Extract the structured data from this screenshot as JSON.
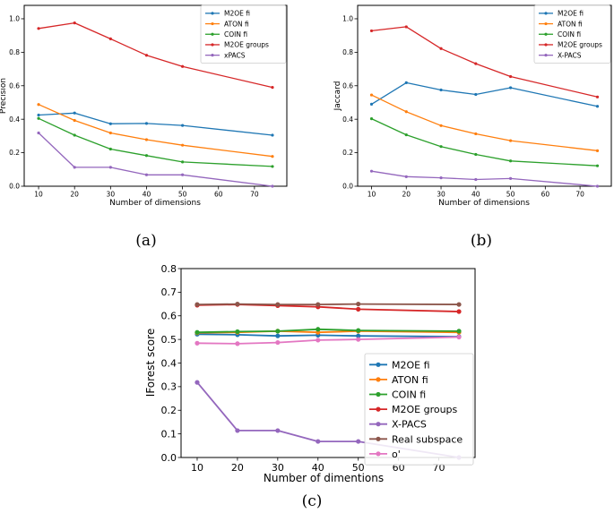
{
  "chart_data": [
    {
      "type": "line",
      "caption": "(a)",
      "title": "",
      "xlabel": "Number of dimensions",
      "ylabel": "Precision",
      "xlim": [
        6,
        79
      ],
      "ylim": [
        0,
        1.08
      ],
      "xticks": [
        10,
        20,
        30,
        40,
        50,
        60,
        70
      ],
      "xtick_labels": [
        "10",
        "20",
        "30",
        "40",
        "50",
        "60",
        "70"
      ],
      "yticks": [
        0,
        0.2,
        0.4,
        0.6,
        0.8,
        1.0
      ],
      "ytick_labels": [
        "0.0",
        "0.2",
        "0.4",
        "0.6",
        "0.8",
        "1.0"
      ],
      "legend_loc": "top-right",
      "x": [
        10,
        20,
        30,
        40,
        50,
        75
      ],
      "series": [
        {
          "name": "M2OE fi",
          "color": "#1f77b4",
          "values": [
            0.425,
            0.437,
            0.373,
            0.375,
            0.363,
            0.305
          ]
        },
        {
          "name": "ATON fi",
          "color": "#ff7f0e",
          "values": [
            0.488,
            0.393,
            0.318,
            0.278,
            0.245,
            0.178
          ]
        },
        {
          "name": "COIN fi",
          "color": "#2ca02c",
          "values": [
            0.405,
            0.305,
            0.222,
            0.183,
            0.145,
            0.118
          ]
        },
        {
          "name": "M2OE groups",
          "color": "#d62728",
          "values": [
            0.942,
            0.975,
            0.88,
            0.782,
            0.715,
            0.59
          ]
        },
        {
          "name": "xPACS",
          "color": "#9467bd",
          "values": [
            0.318,
            0.113,
            0.113,
            0.068,
            0.068,
            0.0
          ]
        }
      ]
    },
    {
      "type": "line",
      "caption": "(b)",
      "title": "",
      "xlabel": "Number of dimensions",
      "ylabel": "Jaccard",
      "xlim": [
        6,
        79
      ],
      "ylim": [
        0,
        1.08
      ],
      "xticks": [
        10,
        20,
        30,
        40,
        50,
        60,
        70
      ],
      "xtick_labels": [
        "10",
        "20",
        "30",
        "40",
        "50",
        "60",
        "70"
      ],
      "yticks": [
        0,
        0.2,
        0.4,
        0.6,
        0.8,
        1.0
      ],
      "ytick_labels": [
        "0.0",
        "0.2",
        "0.4",
        "0.6",
        "0.8",
        "1.0"
      ],
      "legend_loc": "top-right",
      "x": [
        10,
        20,
        30,
        40,
        50,
        75
      ],
      "series": [
        {
          "name": "M2OE fi",
          "color": "#1f77b4",
          "values": [
            0.49,
            0.618,
            0.575,
            0.548,
            0.588,
            0.477
          ]
        },
        {
          "name": "ATON fi",
          "color": "#ff7f0e",
          "values": [
            0.545,
            0.445,
            0.362,
            0.313,
            0.272,
            0.212
          ]
        },
        {
          "name": "COIN fi",
          "color": "#2ca02c",
          "values": [
            0.403,
            0.307,
            0.237,
            0.19,
            0.151,
            0.122
          ]
        },
        {
          "name": "M2OE groups",
          "color": "#d62728",
          "values": [
            0.928,
            0.952,
            0.822,
            0.732,
            0.655,
            0.533
          ]
        },
        {
          "name": "X-PACS",
          "color": "#9467bd",
          "values": [
            0.09,
            0.057,
            0.05,
            0.04,
            0.046,
            0.0
          ]
        }
      ]
    },
    {
      "type": "line",
      "caption": "(c)",
      "title": "",
      "xlabel": "Number of dimentions",
      "ylabel": "IForest score",
      "xlim": [
        6,
        79
      ],
      "ylim": [
        0,
        0.8
      ],
      "xticks": [
        10,
        20,
        30,
        40,
        50,
        60,
        70
      ],
      "xtick_labels": [
        "10",
        "20",
        "30",
        "40",
        "50",
        "60",
        "70"
      ],
      "yticks": [
        0,
        0.1,
        0.2,
        0.3,
        0.4,
        0.5,
        0.6,
        0.7,
        0.8
      ],
      "ytick_labels": [
        "0.0",
        "0.1",
        "0.2",
        "0.3",
        "0.4",
        "0.5",
        "0.6",
        "0.7",
        "0.8"
      ],
      "legend_loc": "center-right",
      "x": [
        10,
        20,
        30,
        40,
        50,
        75
      ],
      "series": [
        {
          "name": "M2OE fi",
          "color": "#1f77b4",
          "values": [
            0.522,
            0.52,
            0.515,
            0.518,
            0.515,
            0.512
          ]
        },
        {
          "name": "ATON fi",
          "color": "#ff7f0e",
          "values": [
            0.528,
            0.53,
            0.535,
            0.53,
            0.535,
            0.53
          ]
        },
        {
          "name": "COIN fi",
          "color": "#2ca02c",
          "values": [
            0.53,
            0.533,
            0.535,
            0.543,
            0.538,
            0.535
          ]
        },
        {
          "name": "M2OE groups",
          "color": "#d62728",
          "values": [
            0.645,
            0.648,
            0.643,
            0.638,
            0.628,
            0.618
          ]
        },
        {
          "name": "X-PACS",
          "color": "#9467bd",
          "values": [
            0.318,
            0.114,
            0.114,
            0.068,
            0.068,
            0.0
          ]
        },
        {
          "name": "Real subspace",
          "color": "#8c564b",
          "values": [
            0.648,
            0.65,
            0.648,
            0.648,
            0.65,
            0.648
          ]
        },
        {
          "name": "o'",
          "color": "#e377c2",
          "values": [
            0.484,
            0.482,
            0.487,
            0.497,
            0.5,
            0.51
          ]
        }
      ]
    }
  ]
}
